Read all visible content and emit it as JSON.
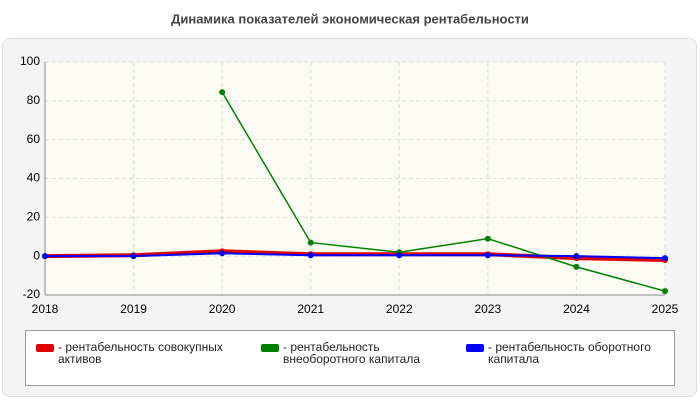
{
  "chart_data": {
    "type": "line",
    "title": "Динамика показателей экономическая рентабельности",
    "x": [
      2018,
      2019,
      2020,
      2021,
      2022,
      2023,
      2024,
      2025
    ],
    "series": [
      {
        "name": "- рентабельность совокупных активов",
        "color": "#e00000",
        "values": [
          0,
          0.5,
          2.5,
          1,
          1,
          1,
          -1,
          -2
        ]
      },
      {
        "name": "- рентабельность внеоборотного капитала",
        "color": "#008000",
        "values": [
          null,
          null,
          84.5,
          7,
          2,
          9,
          -5.5,
          -18
        ]
      },
      {
        "name": "- рентабельность оборотного капитала",
        "color": "#0000ff",
        "values": [
          0,
          0,
          1.5,
          0.5,
          0.5,
          0.5,
          0,
          -1
        ]
      }
    ],
    "xlim": [
      2018,
      2025
    ],
    "xticks": [
      2018,
      2019,
      2020,
      2021,
      2022,
      2023,
      2024,
      2025
    ],
    "ylim": [
      -20,
      100
    ],
    "yticks": [
      -20,
      0,
      20,
      40,
      60,
      80,
      100
    ],
    "grid": true
  }
}
